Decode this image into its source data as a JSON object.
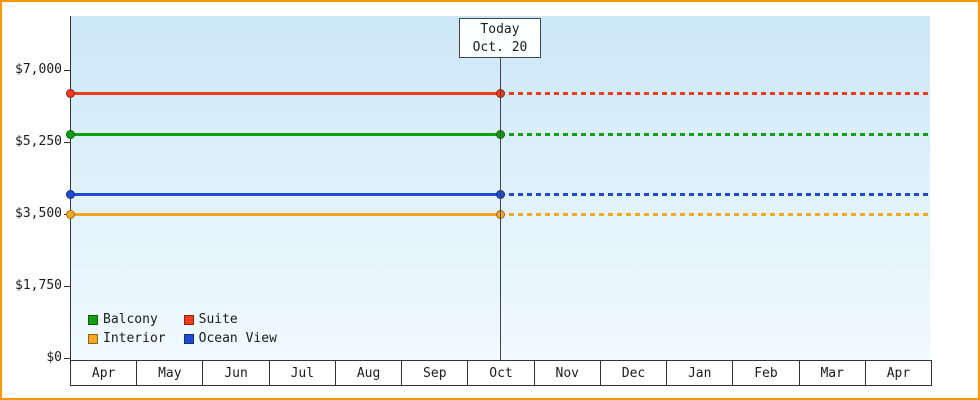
{
  "chart_data": {
    "type": "line",
    "title": "",
    "description": "Cruise cabin price history: four constant price lines, solid before today and dotted (forecast) after today",
    "x_months": [
      "Apr",
      "May",
      "Jun",
      "Jul",
      "Aug",
      "Sep",
      "Oct",
      "Nov",
      "Dec",
      "Jan",
      "Feb",
      "Mar",
      "Apr"
    ],
    "y_ticks": [
      {
        "label": "$7,000",
        "value": 7000
      },
      {
        "label": "$5,250",
        "value": 5250
      },
      {
        "label": "$3,500",
        "value": 3500
      },
      {
        "label": "$1,750",
        "value": 1750
      },
      {
        "label": "$0",
        "value": 0
      }
    ],
    "ylim": [
      0,
      8300
    ],
    "grid": false,
    "today": {
      "line1": "Today",
      "line2": "Oct. 20",
      "month_index": 6
    },
    "series": [
      {
        "name": "Suite",
        "color": "#ef3a1c",
        "value": 6450,
        "style_before_today": "solid",
        "style_after_today": "dotted"
      },
      {
        "name": "Balcony",
        "color": "#12a012",
        "value": 5450,
        "style_before_today": "solid",
        "style_after_today": "dotted"
      },
      {
        "name": "Ocean View",
        "color": "#1f4ad2",
        "value": 3980,
        "style_before_today": "solid",
        "style_after_today": "dotted"
      },
      {
        "name": "Interior",
        "color": "#f5a820",
        "value": 3500,
        "style_before_today": "solid",
        "style_after_today": "dotted"
      }
    ],
    "legend": {
      "position": "bottom-left-inside",
      "items": [
        {
          "label": "Balcony",
          "color": "#12a012"
        },
        {
          "label": "Suite",
          "color": "#ef3a1c"
        },
        {
          "label": "Interior",
          "color": "#f5a820"
        },
        {
          "label": "Ocean View",
          "color": "#1f4ad2"
        }
      ]
    }
  },
  "colors": {
    "frame_border": "#ff9800",
    "axis": "#333333",
    "plot_bg_top": "#cbe7f8",
    "plot_bg_bottom": "#f0faff"
  }
}
